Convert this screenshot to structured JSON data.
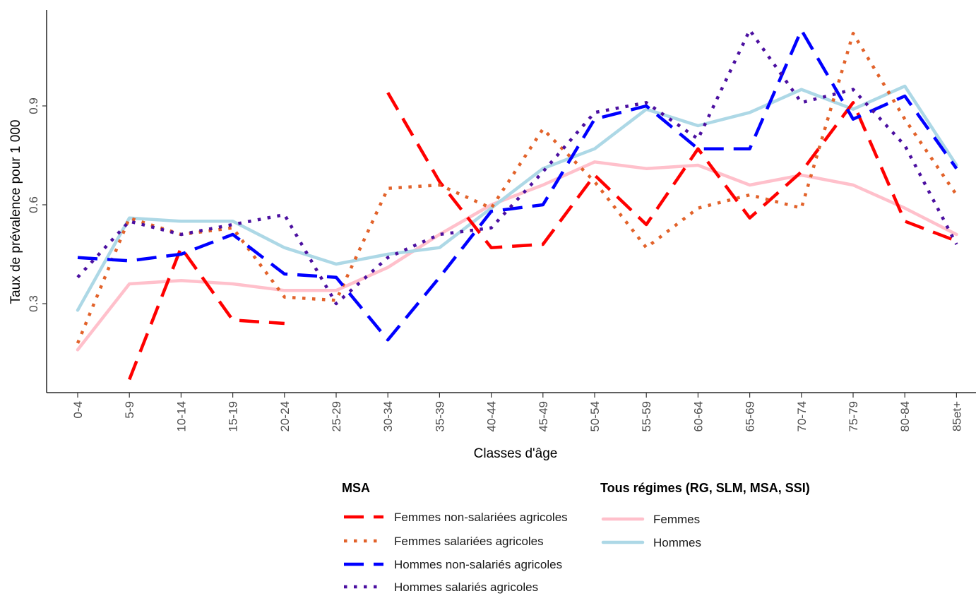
{
  "chart_data": {
    "type": "line",
    "title": "",
    "xlabel": "Classes d'âge",
    "ylabel": "Taux de prévalence pour 1 000",
    "categories": [
      "0-4",
      "5-9",
      "10-14",
      "15-19",
      "20-24",
      "25-29",
      "30-34",
      "35-39",
      "40-44",
      "45-49",
      "50-54",
      "55-59",
      "60-64",
      "65-69",
      "70-74",
      "75-79",
      "80-84",
      "85et+"
    ],
    "ylim": [
      0.04,
      1.2
    ],
    "yticks": [
      0.3,
      0.6,
      0.9
    ],
    "ytick_labels": [
      "0.3",
      "0.6",
      "0.9"
    ],
    "grid": false,
    "legend_position": "bottom",
    "legend_groups": [
      {
        "title": "MSA",
        "series": [
          0,
          1,
          2,
          3
        ]
      },
      {
        "title": "Tous régimes (RG, SLM, MSA, SSI)",
        "series": [
          4,
          5
        ]
      }
    ],
    "series": [
      {
        "name": "Femmes non-salariées agricoles",
        "color": "#ff0000",
        "style": "dashed",
        "values": [
          null,
          0.07,
          0.47,
          0.25,
          0.24,
          null,
          0.94,
          0.67,
          0.47,
          0.48,
          0.69,
          0.54,
          0.77,
          0.56,
          0.7,
          0.91,
          0.55,
          0.49
        ]
      },
      {
        "name": "Femmes salariées agricoles",
        "color": "#e2622a",
        "style": "dotted",
        "values": [
          0.18,
          0.56,
          0.51,
          0.53,
          0.32,
          0.31,
          0.65,
          0.66,
          0.59,
          0.83,
          0.67,
          0.47,
          0.59,
          0.63,
          0.59,
          1.12,
          0.86,
          0.63
        ]
      },
      {
        "name": "Hommes non-salariés agricoles",
        "color": "#0000ff",
        "style": "dashed",
        "values": [
          0.44,
          0.43,
          0.45,
          0.51,
          0.39,
          0.38,
          0.19,
          0.38,
          0.58,
          0.6,
          0.86,
          0.9,
          0.77,
          0.77,
          1.13,
          0.86,
          0.93,
          0.71
        ]
      },
      {
        "name": "Hommes salariés agricoles",
        "color": "#4b0fa0",
        "style": "dotted",
        "values": [
          0.38,
          0.55,
          0.51,
          0.54,
          0.57,
          0.3,
          0.44,
          0.51,
          0.53,
          0.7,
          0.88,
          0.91,
          0.8,
          1.13,
          0.91,
          0.95,
          0.78,
          0.48
        ]
      },
      {
        "name": "Femmes",
        "color": "#ffc0cb",
        "style": "solid",
        "values": [
          0.16,
          0.36,
          0.37,
          0.36,
          0.34,
          0.34,
          0.41,
          0.51,
          0.6,
          0.66,
          0.73,
          0.71,
          0.72,
          0.66,
          0.69,
          0.66,
          0.59,
          0.51
        ]
      },
      {
        "name": "Hommes",
        "color": "#add8e6",
        "style": "solid",
        "values": [
          0.28,
          0.56,
          0.55,
          0.55,
          0.47,
          0.42,
          0.45,
          0.47,
          0.59,
          0.71,
          0.77,
          0.89,
          0.84,
          0.88,
          0.95,
          0.89,
          0.96,
          0.72
        ]
      }
    ]
  }
}
